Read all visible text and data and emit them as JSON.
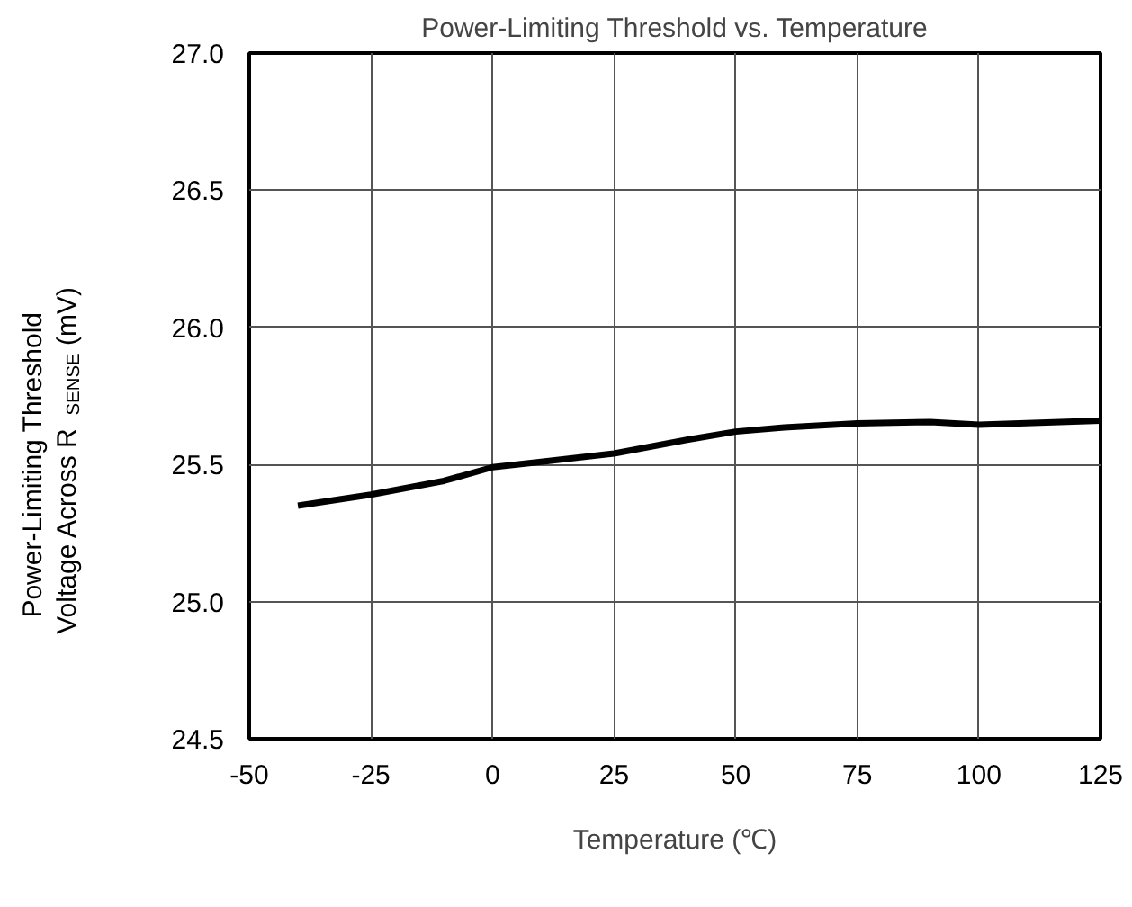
{
  "chart_data": {
    "type": "line",
    "title": "Power-Limiting Threshold vs. Temperature",
    "xlabel": "Temperature (℃)",
    "ylabel": "Power-Limiting Threshold\nVoltage Across R$_{SENSE}$ (mV)",
    "x": [
      -40,
      -25,
      -10,
      0,
      10,
      25,
      40,
      50,
      60,
      75,
      90,
      100,
      125
    ],
    "series": [
      {
        "color": "#000000",
        "values": [
          25.35,
          25.39,
          25.44,
          25.49,
          25.51,
          25.54,
          25.59,
          25.62,
          25.635,
          25.65,
          25.655,
          25.645,
          25.66
        ]
      }
    ],
    "xlim": [
      -50,
      125
    ],
    "xticks": [
      -50,
      -25,
      0,
      25,
      50,
      75,
      100,
      125
    ],
    "ylim": [
      24.5,
      27.0
    ],
    "yticks": [
      {
        "value": 24.5,
        "label": "24.5"
      },
      {
        "value": 25.0,
        "label": "25.0"
      },
      {
        "value": 25.5,
        "label": "25.5"
      },
      {
        "value": 26.0,
        "label": "26.0"
      },
      {
        "value": 26.5,
        "label": "26.5"
      },
      {
        "value": 27.0,
        "label": "27.0"
      }
    ],
    "grid": true,
    "marker": "none",
    "line_style": "solid"
  }
}
